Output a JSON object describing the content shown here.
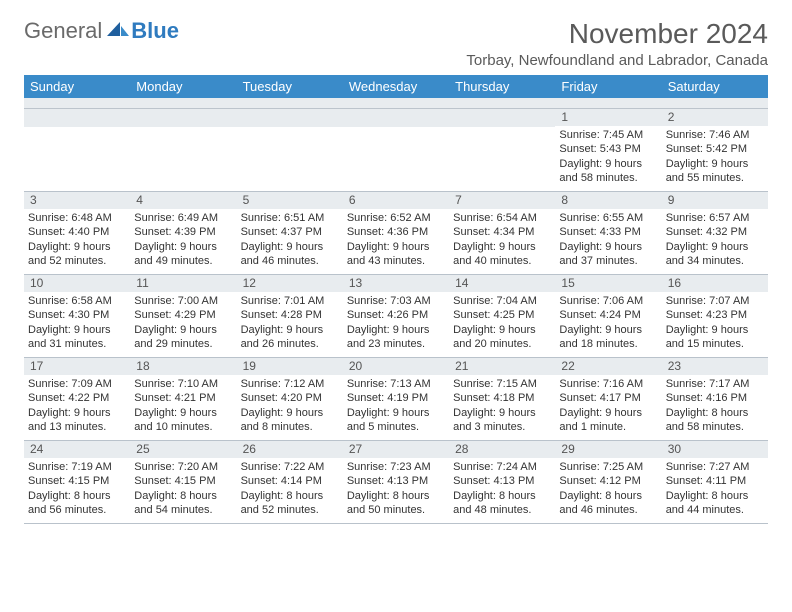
{
  "logo": {
    "general": "General",
    "blue": "Blue"
  },
  "title": "November 2024",
  "location": "Torbay, Newfoundland and Labrador, Canada",
  "colors": {
    "header_bg": "#3a8bc9",
    "header_text": "#ffffff",
    "daynum_bg": "#e8ecef",
    "row_border": "#b9c2cb",
    "text": "#333333",
    "title_text": "#5a5a5a",
    "logo_general": "#6a6a6a",
    "logo_blue": "#2f7bbf"
  },
  "day_headers": [
    "Sunday",
    "Monday",
    "Tuesday",
    "Wednesday",
    "Thursday",
    "Friday",
    "Saturday"
  ],
  "weeks": [
    [
      {
        "n": "",
        "sr": "",
        "ss": "",
        "dl": ""
      },
      {
        "n": "",
        "sr": "",
        "ss": "",
        "dl": ""
      },
      {
        "n": "",
        "sr": "",
        "ss": "",
        "dl": ""
      },
      {
        "n": "",
        "sr": "",
        "ss": "",
        "dl": ""
      },
      {
        "n": "",
        "sr": "",
        "ss": "",
        "dl": ""
      },
      {
        "n": "1",
        "sr": "Sunrise: 7:45 AM",
        "ss": "Sunset: 5:43 PM",
        "dl": "Daylight: 9 hours and 58 minutes."
      },
      {
        "n": "2",
        "sr": "Sunrise: 7:46 AM",
        "ss": "Sunset: 5:42 PM",
        "dl": "Daylight: 9 hours and 55 minutes."
      }
    ],
    [
      {
        "n": "3",
        "sr": "Sunrise: 6:48 AM",
        "ss": "Sunset: 4:40 PM",
        "dl": "Daylight: 9 hours and 52 minutes."
      },
      {
        "n": "4",
        "sr": "Sunrise: 6:49 AM",
        "ss": "Sunset: 4:39 PM",
        "dl": "Daylight: 9 hours and 49 minutes."
      },
      {
        "n": "5",
        "sr": "Sunrise: 6:51 AM",
        "ss": "Sunset: 4:37 PM",
        "dl": "Daylight: 9 hours and 46 minutes."
      },
      {
        "n": "6",
        "sr": "Sunrise: 6:52 AM",
        "ss": "Sunset: 4:36 PM",
        "dl": "Daylight: 9 hours and 43 minutes."
      },
      {
        "n": "7",
        "sr": "Sunrise: 6:54 AM",
        "ss": "Sunset: 4:34 PM",
        "dl": "Daylight: 9 hours and 40 minutes."
      },
      {
        "n": "8",
        "sr": "Sunrise: 6:55 AM",
        "ss": "Sunset: 4:33 PM",
        "dl": "Daylight: 9 hours and 37 minutes."
      },
      {
        "n": "9",
        "sr": "Sunrise: 6:57 AM",
        "ss": "Sunset: 4:32 PM",
        "dl": "Daylight: 9 hours and 34 minutes."
      }
    ],
    [
      {
        "n": "10",
        "sr": "Sunrise: 6:58 AM",
        "ss": "Sunset: 4:30 PM",
        "dl": "Daylight: 9 hours and 31 minutes."
      },
      {
        "n": "11",
        "sr": "Sunrise: 7:00 AM",
        "ss": "Sunset: 4:29 PM",
        "dl": "Daylight: 9 hours and 29 minutes."
      },
      {
        "n": "12",
        "sr": "Sunrise: 7:01 AM",
        "ss": "Sunset: 4:28 PM",
        "dl": "Daylight: 9 hours and 26 minutes."
      },
      {
        "n": "13",
        "sr": "Sunrise: 7:03 AM",
        "ss": "Sunset: 4:26 PM",
        "dl": "Daylight: 9 hours and 23 minutes."
      },
      {
        "n": "14",
        "sr": "Sunrise: 7:04 AM",
        "ss": "Sunset: 4:25 PM",
        "dl": "Daylight: 9 hours and 20 minutes."
      },
      {
        "n": "15",
        "sr": "Sunrise: 7:06 AM",
        "ss": "Sunset: 4:24 PM",
        "dl": "Daylight: 9 hours and 18 minutes."
      },
      {
        "n": "16",
        "sr": "Sunrise: 7:07 AM",
        "ss": "Sunset: 4:23 PM",
        "dl": "Daylight: 9 hours and 15 minutes."
      }
    ],
    [
      {
        "n": "17",
        "sr": "Sunrise: 7:09 AM",
        "ss": "Sunset: 4:22 PM",
        "dl": "Daylight: 9 hours and 13 minutes."
      },
      {
        "n": "18",
        "sr": "Sunrise: 7:10 AM",
        "ss": "Sunset: 4:21 PM",
        "dl": "Daylight: 9 hours and 10 minutes."
      },
      {
        "n": "19",
        "sr": "Sunrise: 7:12 AM",
        "ss": "Sunset: 4:20 PM",
        "dl": "Daylight: 9 hours and 8 minutes."
      },
      {
        "n": "20",
        "sr": "Sunrise: 7:13 AM",
        "ss": "Sunset: 4:19 PM",
        "dl": "Daylight: 9 hours and 5 minutes."
      },
      {
        "n": "21",
        "sr": "Sunrise: 7:15 AM",
        "ss": "Sunset: 4:18 PM",
        "dl": "Daylight: 9 hours and 3 minutes."
      },
      {
        "n": "22",
        "sr": "Sunrise: 7:16 AM",
        "ss": "Sunset: 4:17 PM",
        "dl": "Daylight: 9 hours and 1 minute."
      },
      {
        "n": "23",
        "sr": "Sunrise: 7:17 AM",
        "ss": "Sunset: 4:16 PM",
        "dl": "Daylight: 8 hours and 58 minutes."
      }
    ],
    [
      {
        "n": "24",
        "sr": "Sunrise: 7:19 AM",
        "ss": "Sunset: 4:15 PM",
        "dl": "Daylight: 8 hours and 56 minutes."
      },
      {
        "n": "25",
        "sr": "Sunrise: 7:20 AM",
        "ss": "Sunset: 4:15 PM",
        "dl": "Daylight: 8 hours and 54 minutes."
      },
      {
        "n": "26",
        "sr": "Sunrise: 7:22 AM",
        "ss": "Sunset: 4:14 PM",
        "dl": "Daylight: 8 hours and 52 minutes."
      },
      {
        "n": "27",
        "sr": "Sunrise: 7:23 AM",
        "ss": "Sunset: 4:13 PM",
        "dl": "Daylight: 8 hours and 50 minutes."
      },
      {
        "n": "28",
        "sr": "Sunrise: 7:24 AM",
        "ss": "Sunset: 4:13 PM",
        "dl": "Daylight: 8 hours and 48 minutes."
      },
      {
        "n": "29",
        "sr": "Sunrise: 7:25 AM",
        "ss": "Sunset: 4:12 PM",
        "dl": "Daylight: 8 hours and 46 minutes."
      },
      {
        "n": "30",
        "sr": "Sunrise: 7:27 AM",
        "ss": "Sunset: 4:11 PM",
        "dl": "Daylight: 8 hours and 44 minutes."
      }
    ]
  ]
}
